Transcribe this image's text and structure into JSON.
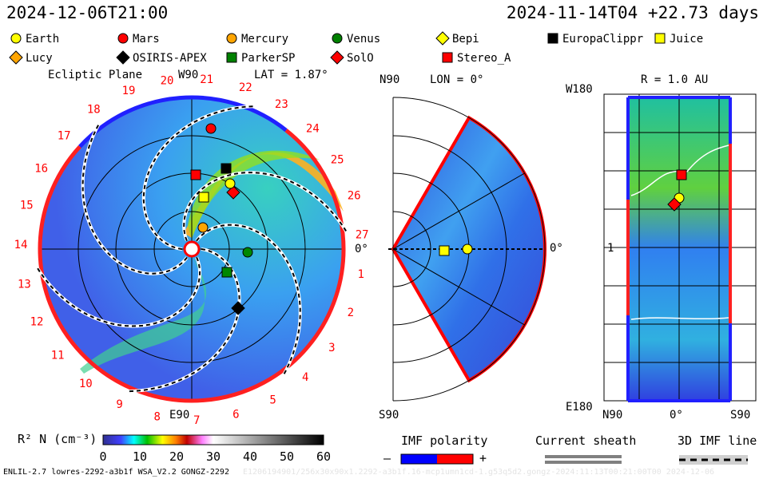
{
  "header": {
    "run_time": "2024-12-06T21:00",
    "model_time": "2024-11-14T04 +22.73 days"
  },
  "legend": [
    {
      "name": "Earth",
      "shape": "circle",
      "color": "#ffff00"
    },
    {
      "name": "Mars",
      "shape": "circle",
      "color": "#ff0000"
    },
    {
      "name": "Mercury",
      "shape": "circle",
      "color": "#ffa500"
    },
    {
      "name": "Venus",
      "shape": "circle",
      "color": "#008000"
    },
    {
      "name": "Bepi",
      "shape": "diamond",
      "color": "#ffff00"
    },
    {
      "name": "EuropaClippr",
      "shape": "square",
      "color": "#000000"
    },
    {
      "name": "Juice",
      "shape": "square",
      "color": "#ffff00"
    },
    {
      "name": "Lucy",
      "shape": "diamond",
      "color": "#ffa500"
    },
    {
      "name": "OSIRIS-APEX",
      "shape": "diamond",
      "color": "#000000"
    },
    {
      "name": "ParkerSP",
      "shape": "square",
      "color": "#008000"
    },
    {
      "name": "SolO",
      "shape": "diamond",
      "color": "#ff0000"
    },
    {
      "name": "Stereo_A",
      "shape": "square",
      "color": "#ff0000"
    }
  ],
  "panels": {
    "ecliptic": {
      "title": "Ecliptic Plane",
      "lat": "LAT = 1.87°",
      "top": "W90",
      "bottom": "E90",
      "right": "0°",
      "carrington": [
        "1",
        "2",
        "3",
        "4",
        "5",
        "6",
        "7",
        "8",
        "9",
        "10",
        "11",
        "12",
        "13",
        "14",
        "15",
        "16",
        "17",
        "18",
        "19",
        "20",
        "21",
        "22",
        "23",
        "24",
        "25",
        "26",
        "27"
      ]
    },
    "meridional": {
      "lon": "LON = 0°",
      "top": "N90",
      "bottom": "S90",
      "right": "0°"
    },
    "radial": {
      "r": "R = 1.0 AU",
      "top": "W180",
      "mid": "1",
      "bottom": "E180",
      "x_left": "N90",
      "x_mid": "0°",
      "x_right": "S90"
    }
  },
  "chart_data": {
    "type": "heatmap",
    "quantity": "R² N (cm⁻³)",
    "colorbar": {
      "label": "R² N (cm⁻³)",
      "range": [
        0,
        60
      ],
      "ticks": [
        "0",
        "10",
        "20",
        "30",
        "40",
        "50",
        "60"
      ]
    }
  },
  "keys": {
    "imf": "IMF polarity",
    "minus": "–",
    "plus": "+",
    "sheath": "Current sheath",
    "line": "3D IMF line",
    "imf_colors": [
      "#0000ff",
      "#ff0000"
    ]
  },
  "footer": {
    "model": "ENLIL-2.7 lowres-2292-a3b1f WSA_V2.2 GONGZ-2292",
    "faint": "E1206194901/256x30x90x1.2292-a3b1f.16-mcp1umn1cd-1.g53q5d2.gongz-2024:11:13T00:21:00T00   2024-12-06"
  }
}
